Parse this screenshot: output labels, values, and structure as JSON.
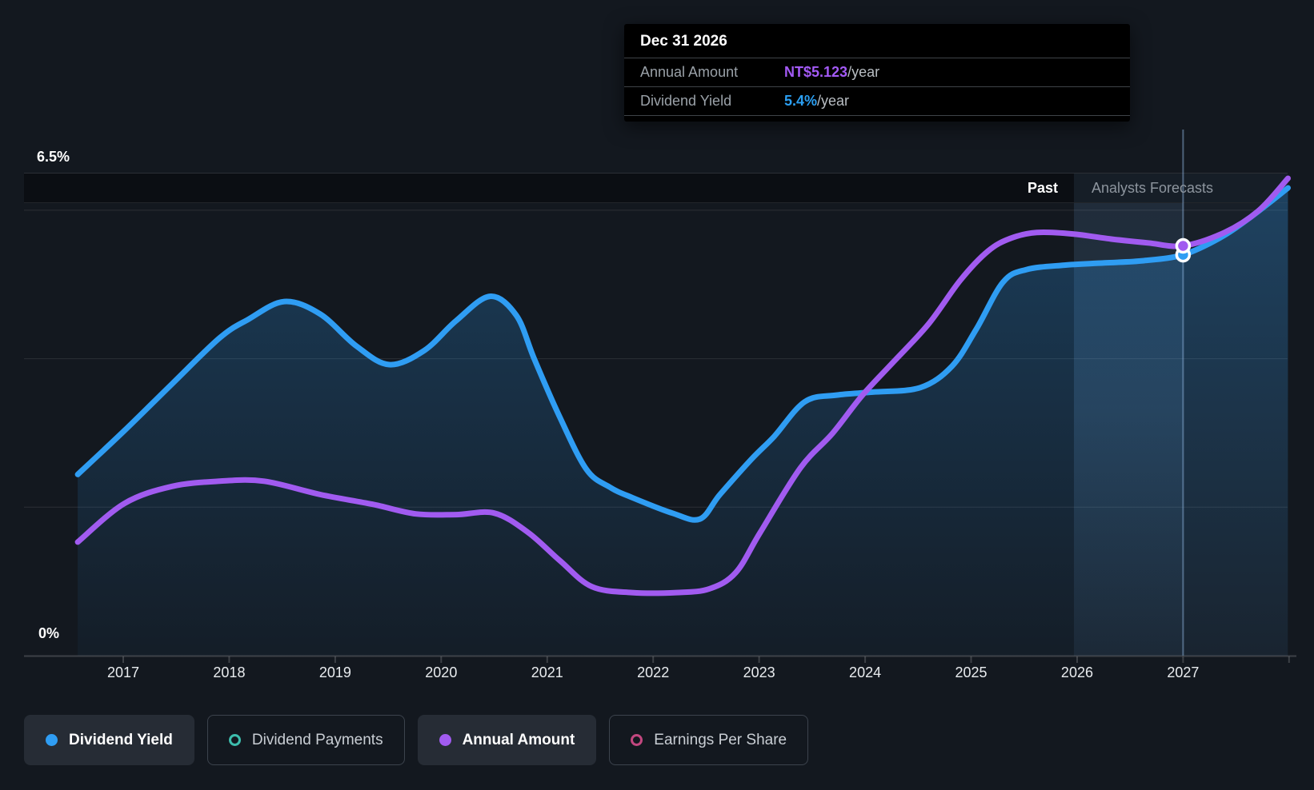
{
  "tooltip": {
    "date": "Dec 31 2026",
    "rows": [
      {
        "label": "Annual Amount",
        "value": "NT$5.123",
        "suffix": "/year",
        "color": "#A35AF5"
      },
      {
        "label": "Dividend Yield",
        "value": "5.4%",
        "suffix": "/year",
        "color": "#2B9FF2"
      }
    ]
  },
  "chart_data": {
    "type": "area",
    "title": "Dividend yield and annual amount history with analyst forecasts",
    "past_label": "Past",
    "forecast_label": "Analysts Forecasts",
    "forecast_start": 2025.97,
    "hover_x": 2027,
    "hover_date": "Dec 31 2026",
    "x_axis": {
      "ticks": [
        2017,
        2018,
        2019,
        2020,
        2021,
        2022,
        2023,
        2024,
        2025,
        2026,
        2027
      ],
      "tick_marks": [
        2017,
        2018,
        2019,
        2020,
        2021,
        2022,
        2023,
        2024,
        2025,
        2026,
        2027,
        2028
      ],
      "range": [
        2016.57,
        2027.99
      ]
    },
    "y_axis": {
      "min": 0,
      "max": 6.5,
      "top_label": "6.5%",
      "bottom_label": "0%",
      "gridlines_pct": [
        6.5,
        6,
        4,
        2
      ],
      "unit": "%"
    },
    "series": [
      {
        "name": "Dividend Yield",
        "color": "#2F9DF3",
        "unit": "percent",
        "fill": true,
        "points": [
          [
            2016.57,
            2.44
          ],
          [
            2017.01,
            3.03
          ],
          [
            2017.46,
            3.66
          ],
          [
            2017.91,
            4.28
          ],
          [
            2018.18,
            4.53
          ],
          [
            2018.52,
            4.77
          ],
          [
            2018.86,
            4.6
          ],
          [
            2019.2,
            4.17
          ],
          [
            2019.51,
            3.92
          ],
          [
            2019.84,
            4.11
          ],
          [
            2020.14,
            4.51
          ],
          [
            2020.46,
            4.84
          ],
          [
            2020.71,
            4.58
          ],
          [
            2020.88,
            3.99
          ],
          [
            2021.12,
            3.21
          ],
          [
            2021.37,
            2.51
          ],
          [
            2021.59,
            2.27
          ],
          [
            2021.8,
            2.13
          ],
          [
            2022.18,
            1.92
          ],
          [
            2022.44,
            1.84
          ],
          [
            2022.63,
            2.17
          ],
          [
            2022.93,
            2.65
          ],
          [
            2023.14,
            2.95
          ],
          [
            2023.43,
            3.42
          ],
          [
            2023.73,
            3.51
          ],
          [
            2024.07,
            3.55
          ],
          [
            2024.52,
            3.61
          ],
          [
            2024.82,
            3.9
          ],
          [
            2025.05,
            4.4
          ],
          [
            2025.3,
            5.03
          ],
          [
            2025.52,
            5.2
          ],
          [
            2025.88,
            5.26
          ],
          [
            2026.26,
            5.29
          ],
          [
            2026.63,
            5.32
          ],
          [
            2027.0,
            5.4
          ],
          [
            2027.35,
            5.63
          ],
          [
            2027.65,
            5.92
          ],
          [
            2027.99,
            6.3
          ]
        ]
      },
      {
        "name": "Annual Amount",
        "color": "#A15BF0",
        "unit": "NT$/year plotted on hidden scale (positions given on yield axis)",
        "value_at_cursor": "NT$5.123/year at Dec 31 2026",
        "fill": false,
        "points": [
          [
            2016.57,
            1.53
          ],
          [
            2017.01,
            2.05
          ],
          [
            2017.46,
            2.28
          ],
          [
            2017.91,
            2.35
          ],
          [
            2018.33,
            2.35
          ],
          [
            2018.86,
            2.17
          ],
          [
            2019.35,
            2.04
          ],
          [
            2019.76,
            1.91
          ],
          [
            2020.14,
            1.9
          ],
          [
            2020.5,
            1.92
          ],
          [
            2020.82,
            1.66
          ],
          [
            2021.12,
            1.28
          ],
          [
            2021.42,
            0.93
          ],
          [
            2021.8,
            0.85
          ],
          [
            2022.22,
            0.85
          ],
          [
            2022.53,
            0.9
          ],
          [
            2022.78,
            1.12
          ],
          [
            2023.01,
            1.66
          ],
          [
            2023.39,
            2.53
          ],
          [
            2023.69,
            2.99
          ],
          [
            2023.97,
            3.5
          ],
          [
            2024.27,
            3.96
          ],
          [
            2024.6,
            4.47
          ],
          [
            2024.9,
            5.06
          ],
          [
            2025.16,
            5.45
          ],
          [
            2025.37,
            5.62
          ],
          [
            2025.62,
            5.7
          ],
          [
            2025.96,
            5.68
          ],
          [
            2026.33,
            5.61
          ],
          [
            2026.67,
            5.56
          ],
          [
            2027.0,
            5.52
          ],
          [
            2027.39,
            5.7
          ],
          [
            2027.71,
            5.99
          ],
          [
            2027.99,
            6.43
          ]
        ]
      }
    ],
    "markers": [
      {
        "series": 0,
        "x": 2027,
        "y": 5.4
      },
      {
        "series": 1,
        "x": 2027,
        "y": 5.52
      }
    ],
    "legend_position": "bottom"
  },
  "legend": [
    {
      "label": "Dividend Yield",
      "color": "#2F9DF3",
      "style": "filled",
      "active": true
    },
    {
      "label": "Dividend Payments",
      "color": "#3DBDAD",
      "style": "ring",
      "active": false
    },
    {
      "label": "Annual Amount",
      "color": "#A15BF0",
      "style": "filled",
      "active": true
    },
    {
      "label": "Earnings Per Share",
      "color": "#C2477F",
      "style": "ring",
      "active": false
    }
  ]
}
